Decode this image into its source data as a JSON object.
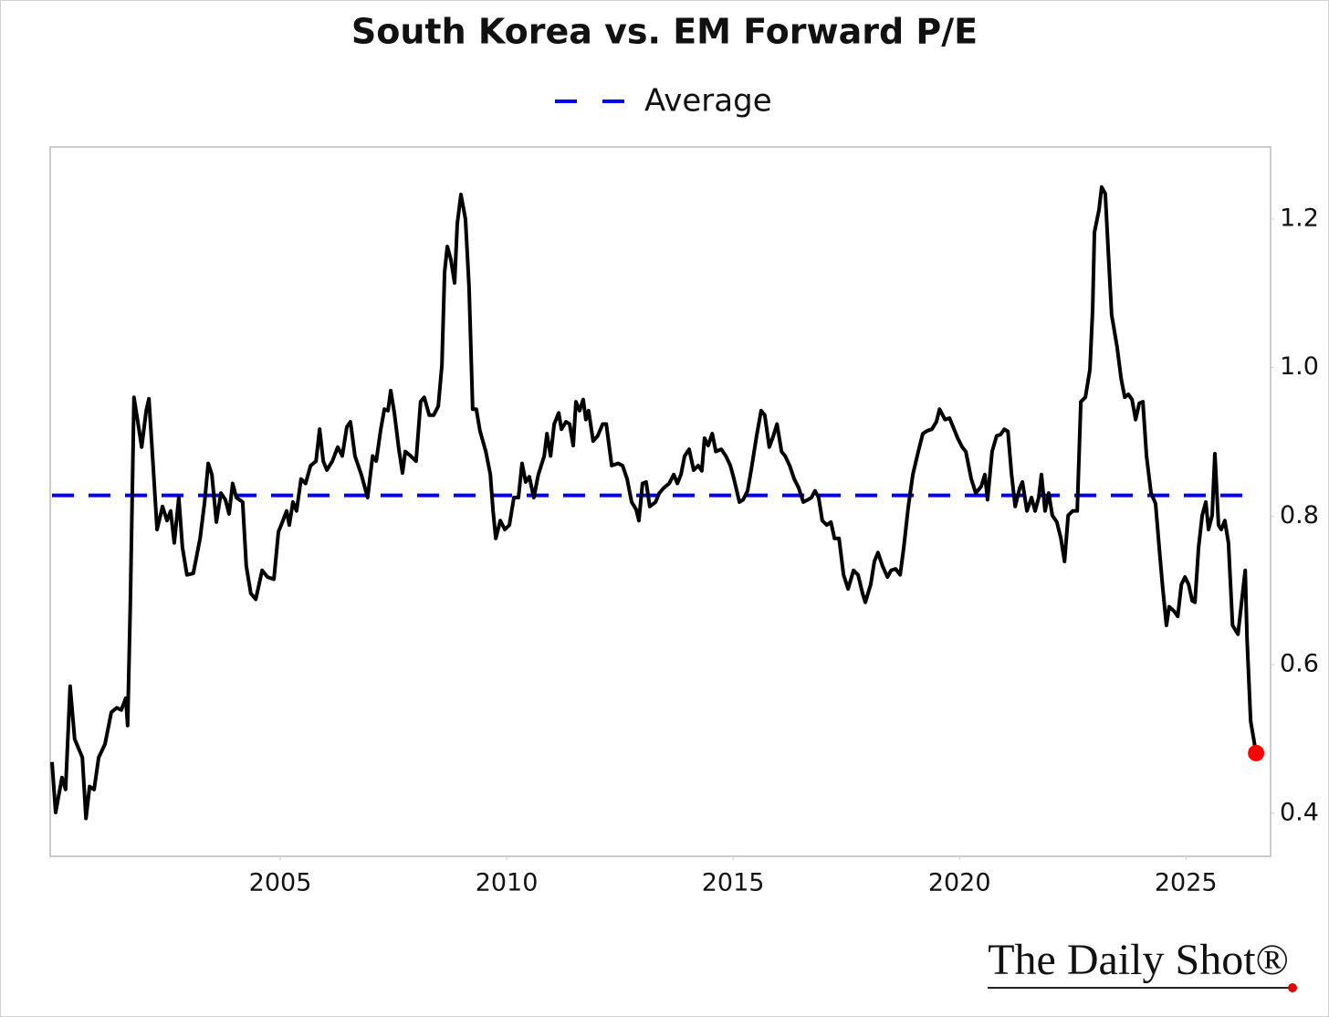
{
  "chart_data": {
    "type": "line",
    "title": "South Korea vs. EM Forward P/E",
    "source": "The Daily Shot®",
    "xlim": [
      1999.92,
      2026.87
    ],
    "xticks": [
      2005,
      2010,
      2015,
      2020,
      2025
    ],
    "ylim": [
      0.342,
      1.297
    ],
    "yticks": [
      0.4,
      0.6,
      0.8,
      {
        "value": 1,
        "label": "1.0"
      },
      1.2
    ],
    "y_axis_side": "right",
    "grid": false,
    "last_point_color": "#ff0000",
    "reference_lines": [
      {
        "name": "Average",
        "value": 0.828,
        "color": "#0000ff",
        "dashed": true
      }
    ],
    "x": [
      1999.96,
      2000.04,
      2000.18,
      2000.26,
      2000.36,
      2000.46,
      2000.63,
      2000.71,
      2000.79,
      2000.89,
      2000.99,
      2001.13,
      2001.27,
      2001.39,
      2001.49,
      2001.59,
      2001.63,
      2001.69,
      2001.77,
      2001.88,
      2001.94,
      2002.04,
      2002.1,
      2002.18,
      2002.28,
      2002.4,
      2002.5,
      2002.58,
      2002.66,
      2002.76,
      2002.84,
      2002.94,
      2003.08,
      2003.23,
      2003.33,
      2003.41,
      2003.49,
      2003.59,
      2003.69,
      2003.79,
      2003.87,
      2003.95,
      2004.03,
      2004.17,
      2004.25,
      2004.35,
      2004.46,
      2004.6,
      2004.72,
      2004.86,
      2004.96,
      2005.06,
      2005.14,
      2005.2,
      2005.28,
      2005.36,
      2005.46,
      2005.56,
      2005.67,
      2005.79,
      2005.87,
      2005.95,
      2006.03,
      2006.15,
      2006.27,
      2006.37,
      2006.47,
      2006.55,
      2006.65,
      2006.79,
      2006.93,
      2007.04,
      2007.12,
      2007.22,
      2007.3,
      2007.38,
      2007.44,
      2007.52,
      2007.62,
      2007.7,
      2007.76,
      2007.88,
      2008.0,
      2008.1,
      2008.18,
      2008.29,
      2008.39,
      2008.49,
      2008.57,
      2008.63,
      2008.69,
      2008.77,
      2008.85,
      2008.91,
      2008.99,
      2009.09,
      2009.17,
      2009.25,
      2009.33,
      2009.41,
      2009.54,
      2009.64,
      2009.7,
      2009.76,
      2009.86,
      2009.96,
      2010.06,
      2010.16,
      2010.26,
      2010.34,
      2010.42,
      2010.5,
      2010.6,
      2010.7,
      2010.83,
      2010.89,
      2010.97,
      2011.05,
      2011.15,
      2011.21,
      2011.31,
      2011.39,
      2011.47,
      2011.53,
      2011.61,
      2011.69,
      2011.75,
      2011.81,
      2011.91,
      2012.01,
      2012.12,
      2012.2,
      2012.32,
      2012.46,
      2012.56,
      2012.66,
      2012.76,
      2012.86,
      2012.92,
      2013.0,
      2013.08,
      2013.16,
      2013.29,
      2013.37,
      2013.47,
      2013.59,
      2013.69,
      2013.77,
      2013.85,
      2013.93,
      2014.03,
      2014.13,
      2014.23,
      2014.31,
      2014.37,
      2014.45,
      2014.54,
      2014.62,
      2014.74,
      2014.84,
      2014.94,
      2015.02,
      2015.14,
      2015.22,
      2015.32,
      2015.4,
      2015.52,
      2015.62,
      2015.7,
      2015.8,
      2015.89,
      2015.97,
      2016.07,
      2016.15,
      2016.25,
      2016.35,
      2016.45,
      2016.55,
      2016.65,
      2016.73,
      2016.81,
      2016.89,
      2016.97,
      2017.07,
      2017.16,
      2017.24,
      2017.34,
      2017.44,
      2017.54,
      2017.66,
      2017.76,
      2017.86,
      2017.92,
      2018.04,
      2018.12,
      2018.2,
      2018.3,
      2018.41,
      2018.49,
      2018.59,
      2018.69,
      2018.77,
      2018.87,
      2018.97,
      2019.09,
      2019.19,
      2019.29,
      2019.39,
      2019.49,
      2019.56,
      2019.68,
      2019.78,
      2019.88,
      2019.96,
      2020.06,
      2020.14,
      2020.26,
      2020.36,
      2020.48,
      2020.56,
      2020.62,
      2020.72,
      2020.82,
      2020.91,
      2020.99,
      2021.07,
      2021.15,
      2021.23,
      2021.33,
      2021.39,
      2021.49,
      2021.59,
      2021.67,
      2021.75,
      2021.81,
      2021.89,
      2021.97,
      2022.05,
      2022.15,
      2022.24,
      2022.32,
      2022.4,
      2022.5,
      2022.6,
      2022.68,
      2022.78,
      2022.88,
      2022.94,
      2022.98,
      2023.08,
      2023.14,
      2023.22,
      2023.28,
      2023.36,
      2023.48,
      2023.57,
      2023.65,
      2023.73,
      2023.81,
      2023.89,
      2023.97,
      2024.05,
      2024.13,
      2024.23,
      2024.33,
      2024.41,
      2024.49,
      2024.57,
      2024.63,
      2024.74,
      2024.82,
      2024.9,
      2024.98,
      2025.06,
      2025.14,
      2025.2,
      2025.28,
      2025.36,
      2025.44,
      2025.5,
      2025.58,
      2025.64,
      2025.72,
      2025.78,
      2025.86,
      2025.94,
      2026.03,
      2026.15,
      2026.23,
      2026.31,
      2026.35,
      2026.43,
      2026.55
    ],
    "series": [
      {
        "color": "#000000",
        "values": [
          0.469,
          0.401,
          0.448,
          0.432,
          0.571,
          0.5,
          0.475,
          0.393,
          0.436,
          0.432,
          0.475,
          0.493,
          0.536,
          0.542,
          0.539,
          0.555,
          0.518,
          0.684,
          0.96,
          0.917,
          0.893,
          0.942,
          0.958,
          0.881,
          0.782,
          0.813,
          0.794,
          0.807,
          0.764,
          0.825,
          0.758,
          0.721,
          0.723,
          0.77,
          0.819,
          0.871,
          0.856,
          0.792,
          0.831,
          0.822,
          0.803,
          0.844,
          0.825,
          0.819,
          0.733,
          0.696,
          0.688,
          0.727,
          0.718,
          0.715,
          0.779,
          0.794,
          0.807,
          0.788,
          0.819,
          0.807,
          0.85,
          0.844,
          0.868,
          0.874,
          0.917,
          0.874,
          0.862,
          0.874,
          0.893,
          0.881,
          0.92,
          0.927,
          0.881,
          0.856,
          0.825,
          0.881,
          0.874,
          0.917,
          0.944,
          0.942,
          0.969,
          0.939,
          0.89,
          0.858,
          0.887,
          0.881,
          0.874,
          0.954,
          0.96,
          0.936,
          0.936,
          0.948,
          1.003,
          1.129,
          1.163,
          1.145,
          1.114,
          1.194,
          1.233,
          1.2,
          1.108,
          0.944,
          0.944,
          0.915,
          0.887,
          0.856,
          0.807,
          0.77,
          0.794,
          0.782,
          0.788,
          0.825,
          0.825,
          0.871,
          0.846,
          0.853,
          0.825,
          0.856,
          0.881,
          0.911,
          0.881,
          0.924,
          0.939,
          0.917,
          0.927,
          0.924,
          0.895,
          0.954,
          0.942,
          0.957,
          0.93,
          0.942,
          0.901,
          0.908,
          0.924,
          0.924,
          0.868,
          0.871,
          0.868,
          0.85,
          0.819,
          0.809,
          0.794,
          0.844,
          0.846,
          0.813,
          0.819,
          0.831,
          0.838,
          0.844,
          0.856,
          0.844,
          0.856,
          0.881,
          0.89,
          0.862,
          0.868,
          0.861,
          0.905,
          0.895,
          0.911,
          0.887,
          0.89,
          0.881,
          0.868,
          0.85,
          0.819,
          0.822,
          0.834,
          0.862,
          0.908,
          0.942,
          0.936,
          0.893,
          0.908,
          0.924,
          0.887,
          0.881,
          0.868,
          0.85,
          0.838,
          0.819,
          0.822,
          0.825,
          0.834,
          0.825,
          0.794,
          0.788,
          0.792,
          0.77,
          0.77,
          0.721,
          0.702,
          0.727,
          0.721,
          0.696,
          0.684,
          0.708,
          0.739,
          0.751,
          0.733,
          0.718,
          0.727,
          0.729,
          0.721,
          0.758,
          0.813,
          0.856,
          0.887,
          0.911,
          0.915,
          0.917,
          0.927,
          0.944,
          0.93,
          0.932,
          0.917,
          0.905,
          0.893,
          0.887,
          0.85,
          0.831,
          0.84,
          0.856,
          0.822,
          0.887,
          0.908,
          0.91,
          0.917,
          0.914,
          0.856,
          0.813,
          0.838,
          0.846,
          0.807,
          0.825,
          0.807,
          0.825,
          0.856,
          0.807,
          0.831,
          0.801,
          0.792,
          0.77,
          0.739,
          0.801,
          0.807,
          0.807,
          0.954,
          0.96,
          0.997,
          1.077,
          1.182,
          1.212,
          1.243,
          1.234,
          1.163,
          1.071,
          1.028,
          0.985,
          0.96,
          0.964,
          0.957,
          0.93,
          0.952,
          0.954,
          0.881,
          0.831,
          0.817,
          0.758,
          0.702,
          0.653,
          0.678,
          0.672,
          0.665,
          0.708,
          0.718,
          0.708,
          0.686,
          0.684,
          0.758,
          0.801,
          0.819,
          0.782,
          0.801,
          0.884,
          0.788,
          0.782,
          0.794,
          0.764,
          0.653,
          0.641,
          0.684,
          0.727,
          0.635,
          0.524,
          0.481
        ]
      }
    ]
  }
}
